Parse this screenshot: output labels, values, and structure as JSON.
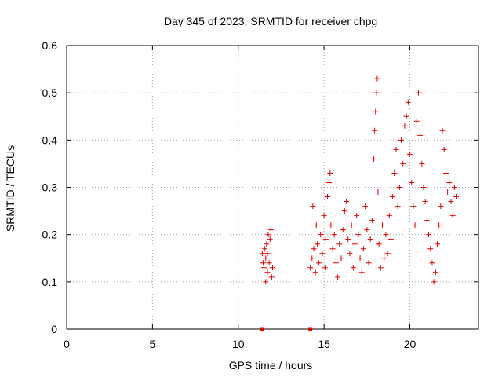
{
  "chart_data": {
    "type": "scatter",
    "title": "Day 345 of 2023, SRMTID for receiver chpg",
    "xlabel": "GPS time / hours",
    "ylabel": "SRMTID / TECUs",
    "xlim": [
      0,
      24
    ],
    "ylim": [
      0,
      0.6
    ],
    "xticks": [
      0,
      5,
      10,
      15,
      20
    ],
    "xtick_labels": [
      "0",
      "5",
      "10",
      "15",
      "20"
    ],
    "yticks": [
      0,
      0.1,
      0.2,
      0.3,
      0.4,
      0.5,
      0.6
    ],
    "ytick_labels": [
      "0",
      "0.1",
      "0.2",
      "0.3",
      "0.4",
      "0.5",
      "0.6"
    ],
    "grid": true,
    "marker": "plus",
    "color": "#e00000",
    "zero_markers": [
      {
        "x": 11.4,
        "y": 0
      },
      {
        "x": 14.2,
        "y": 0
      }
    ],
    "series": [
      {
        "name": "receiver chpg",
        "points": [
          [
            11.4,
            0.16
          ],
          [
            11.45,
            0.14
          ],
          [
            11.5,
            0.13
          ],
          [
            11.55,
            0.17
          ],
          [
            11.6,
            0.15
          ],
          [
            11.65,
            0.18
          ],
          [
            11.7,
            0.12
          ],
          [
            11.75,
            0.2
          ],
          [
            11.8,
            0.14
          ],
          [
            11.85,
            0.19
          ],
          [
            11.9,
            0.21
          ],
          [
            11.95,
            0.11
          ],
          [
            12.0,
            0.13
          ],
          [
            11.6,
            0.1
          ],
          [
            11.7,
            0.16
          ],
          [
            14.2,
            0.13
          ],
          [
            14.3,
            0.15
          ],
          [
            14.35,
            0.26
          ],
          [
            14.4,
            0.17
          ],
          [
            14.5,
            0.12
          ],
          [
            14.55,
            0.22
          ],
          [
            14.6,
            0.18
          ],
          [
            14.7,
            0.14
          ],
          [
            14.8,
            0.2
          ],
          [
            14.9,
            0.16
          ],
          [
            15.0,
            0.24
          ],
          [
            15.05,
            0.13
          ],
          [
            15.1,
            0.19
          ],
          [
            15.2,
            0.28
          ],
          [
            15.3,
            0.31
          ],
          [
            15.35,
            0.33
          ],
          [
            15.4,
            0.22
          ],
          [
            15.5,
            0.17
          ],
          [
            15.6,
            0.2
          ],
          [
            15.7,
            0.14
          ],
          [
            15.8,
            0.11
          ],
          [
            15.9,
            0.18
          ],
          [
            16.0,
            0.15
          ],
          [
            16.1,
            0.21
          ],
          [
            16.2,
            0.25
          ],
          [
            16.3,
            0.27
          ],
          [
            16.4,
            0.19
          ],
          [
            16.5,
            0.16
          ],
          [
            16.6,
            0.22
          ],
          [
            16.7,
            0.13
          ],
          [
            16.8,
            0.18
          ],
          [
            16.9,
            0.24
          ],
          [
            17.0,
            0.2
          ],
          [
            17.1,
            0.15
          ],
          [
            17.2,
            0.12
          ],
          [
            17.3,
            0.17
          ],
          [
            17.4,
            0.26
          ],
          [
            17.5,
            0.21
          ],
          [
            17.6,
            0.14
          ],
          [
            17.7,
            0.19
          ],
          [
            17.8,
            0.23
          ],
          [
            17.9,
            0.36
          ],
          [
            17.95,
            0.42
          ],
          [
            18.0,
            0.46
          ],
          [
            18.05,
            0.5
          ],
          [
            18.1,
            0.53
          ],
          [
            18.15,
            0.29
          ],
          [
            18.2,
            0.18
          ],
          [
            18.3,
            0.13
          ],
          [
            18.4,
            0.22
          ],
          [
            18.5,
            0.15
          ],
          [
            18.6,
            0.2
          ],
          [
            18.7,
            0.16
          ],
          [
            18.8,
            0.24
          ],
          [
            18.9,
            0.19
          ],
          [
            19.0,
            0.28
          ],
          [
            19.1,
            0.33
          ],
          [
            19.2,
            0.38
          ],
          [
            19.3,
            0.26
          ],
          [
            19.4,
            0.3
          ],
          [
            19.5,
            0.4
          ],
          [
            19.6,
            0.35
          ],
          [
            19.7,
            0.43
          ],
          [
            19.8,
            0.45
          ],
          [
            19.9,
            0.48
          ],
          [
            20.0,
            0.37
          ],
          [
            20.1,
            0.31
          ],
          [
            20.2,
            0.26
          ],
          [
            20.3,
            0.22
          ],
          [
            20.4,
            0.44
          ],
          [
            20.5,
            0.5
          ],
          [
            20.6,
            0.41
          ],
          [
            20.7,
            0.35
          ],
          [
            20.8,
            0.3
          ],
          [
            20.9,
            0.27
          ],
          [
            21.0,
            0.23
          ],
          [
            21.1,
            0.2
          ],
          [
            21.2,
            0.17
          ],
          [
            21.3,
            0.14
          ],
          [
            21.4,
            0.1
          ],
          [
            21.5,
            0.12
          ],
          [
            21.6,
            0.18
          ],
          [
            21.7,
            0.22
          ],
          [
            21.8,
            0.26
          ],
          [
            21.9,
            0.42
          ],
          [
            22.0,
            0.38
          ],
          [
            22.1,
            0.33
          ],
          [
            22.2,
            0.29
          ],
          [
            22.3,
            0.31
          ],
          [
            22.4,
            0.27
          ],
          [
            22.5,
            0.24
          ],
          [
            22.6,
            0.3
          ],
          [
            22.7,
            0.28
          ]
        ]
      }
    ]
  }
}
